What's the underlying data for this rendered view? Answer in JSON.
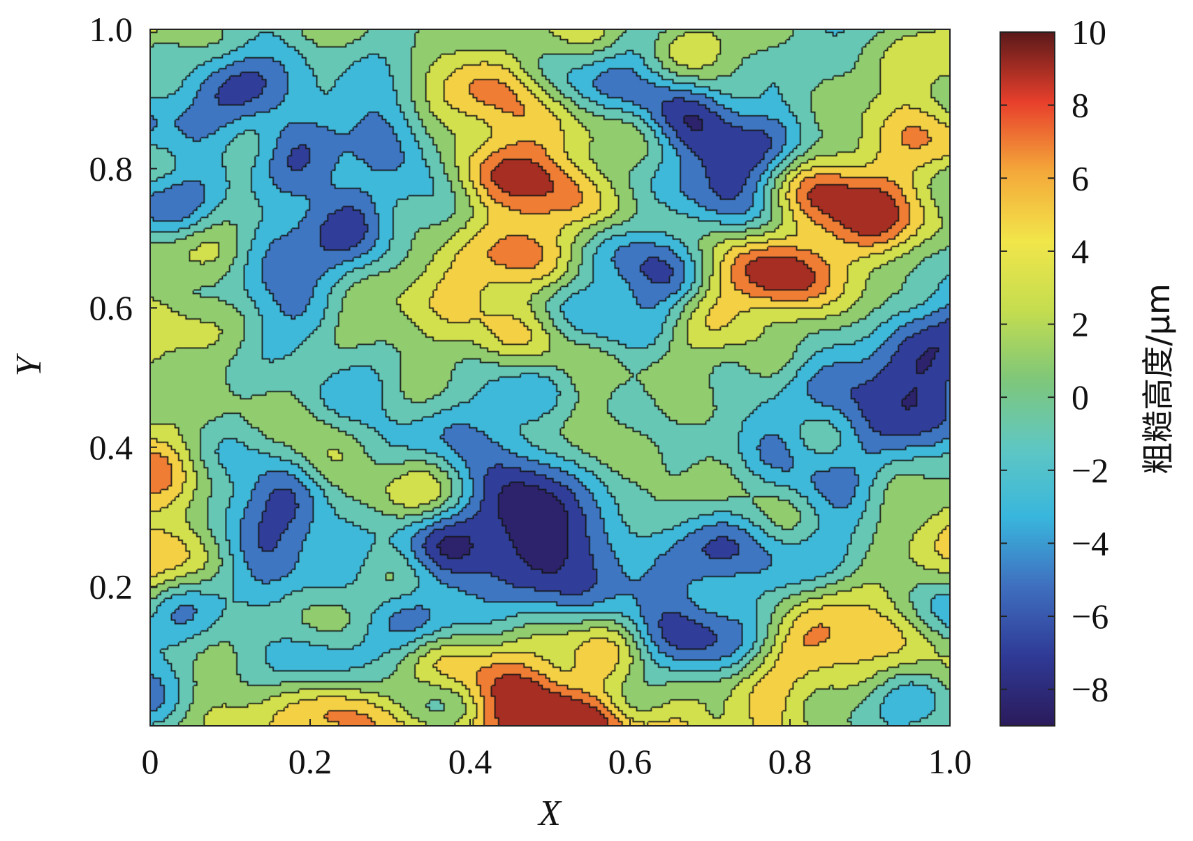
{
  "chart_data": {
    "type": "heatmap",
    "subtype": "filled contour map",
    "title": "",
    "xlabel": "X",
    "ylabel": "Y",
    "xlim": [
      0,
      1.0
    ],
    "ylim": [
      0,
      1.0
    ],
    "x_ticks": [
      "0",
      "0.2",
      "0.4",
      "0.6",
      "0.8",
      "1.0"
    ],
    "x_tick_values": [
      0,
      0.2,
      0.4,
      0.6,
      0.8,
      1.0
    ],
    "y_ticks": [
      "0.2",
      "0.4",
      "0.6",
      "0.8",
      "1.0"
    ],
    "y_tick_values": [
      0.2,
      0.4,
      0.6,
      0.8,
      1.0
    ],
    "colorbar": {
      "label": "粗糙高度/μm",
      "range": [
        -9,
        10
      ],
      "ticks": [
        "10",
        "8",
        "6",
        "4",
        "2",
        "0",
        "−2",
        "−4",
        "−6",
        "−8"
      ],
      "tick_values": [
        10,
        8,
        6,
        4,
        2,
        0,
        -2,
        -4,
        -6,
        -8
      ],
      "colormap": [
        "#2b1b5c",
        "#2f3b97",
        "#3f6fbf",
        "#39b6dd",
        "#5fc7c3",
        "#7fc77a",
        "#c5dd4f",
        "#f2e64a",
        "#f4a93a",
        "#e8402c",
        "#5d1a1a"
      ]
    },
    "contour_levels": [
      -8,
      -6,
      -4,
      -2,
      0,
      2,
      4,
      6,
      8
    ],
    "grid": false,
    "z_unit": "μm",
    "features": [
      {
        "x": 0.45,
        "y": 0.93,
        "z": 7.5
      },
      {
        "x": 0.46,
        "y": 0.74,
        "z": 7
      },
      {
        "x": 0.73,
        "y": 0.63,
        "z": 7.5
      },
      {
        "x": 0.89,
        "y": 0.71,
        "z": 8
      },
      {
        "x": 0.49,
        "y": 0.02,
        "z": 9
      },
      {
        "x": 0.33,
        "y": 0.02,
        "z": 6
      },
      {
        "x": 0.86,
        "y": 0.05,
        "z": 6
      },
      {
        "x": 0.01,
        "y": 0.29,
        "z": 6
      },
      {
        "x": 0.04,
        "y": 0.59,
        "z": 4
      },
      {
        "x": 0.19,
        "y": 0.63,
        "z": -7
      },
      {
        "x": 0.48,
        "y": 0.25,
        "z": -8
      },
      {
        "x": 0.71,
        "y": 0.19,
        "z": -7.5
      },
      {
        "x": 0.73,
        "y": 0.8,
        "z": -7.5
      },
      {
        "x": 0.65,
        "y": 0.63,
        "z": -7
      },
      {
        "x": 0.93,
        "y": 0.49,
        "z": -7.5
      },
      {
        "x": 0.14,
        "y": 0.36,
        "z": -6.5
      },
      {
        "x": 0.3,
        "y": 0.5,
        "z": -6
      },
      {
        "x": 0.09,
        "y": 0.95,
        "z": -6
      }
    ]
  }
}
